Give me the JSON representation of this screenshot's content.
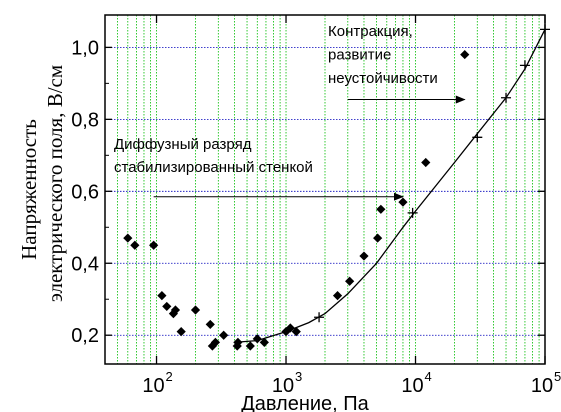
{
  "chart_data": {
    "type": "scatter",
    "title": "",
    "xlabel": "Давление, Па",
    "ylabel_lines": [
      "Напряженность",
      "электрического поля, В/см"
    ],
    "xscale": "log",
    "xlim": [
      40,
      100000
    ],
    "ylim": [
      0.12,
      1.09
    ],
    "grid": true,
    "grid_colors": {
      "x": "#00bb00",
      "y": "#0000bb"
    },
    "x_ticks": [
      {
        "base": "10",
        "exp": "2"
      },
      {
        "base": "10",
        "exp": "3"
      },
      {
        "base": "10",
        "exp": "4"
      },
      {
        "base": "10",
        "exp": "5"
      }
    ],
    "y_ticks": [
      "0,2",
      "0,4",
      "0,6",
      "0,8",
      "1,0"
    ],
    "y_tick_values": [
      0.2,
      0.4,
      0.6,
      0.8,
      1.0
    ],
    "series": [
      {
        "marker": "diamond",
        "points": [
          [
            60,
            0.47
          ],
          [
            68,
            0.45
          ],
          [
            95,
            0.45
          ],
          [
            110,
            0.31
          ],
          [
            120,
            0.28
          ],
          [
            135,
            0.26
          ],
          [
            140,
            0.27
          ],
          [
            155,
            0.21
          ],
          [
            200,
            0.27
          ],
          [
            260,
            0.23
          ],
          [
            270,
            0.17
          ],
          [
            285,
            0.18
          ],
          [
            330,
            0.2
          ],
          [
            420,
            0.17
          ],
          [
            425,
            0.18
          ],
          [
            530,
            0.17
          ],
          [
            600,
            0.19
          ],
          [
            680,
            0.18
          ],
          [
            1000,
            0.21
          ],
          [
            1080,
            0.22
          ],
          [
            1200,
            0.21
          ],
          [
            2500,
            0.31
          ],
          [
            3100,
            0.35
          ],
          [
            4000,
            0.42
          ],
          [
            5100,
            0.47
          ],
          [
            5400,
            0.55
          ],
          [
            8000,
            0.57
          ],
          [
            12000,
            0.68
          ],
          [
            24000,
            0.98
          ]
        ]
      },
      {
        "marker": "plus",
        "points": [
          [
            1800,
            0.25
          ],
          [
            9500,
            0.54
          ],
          [
            30000,
            0.75
          ],
          [
            50000,
            0.86
          ],
          [
            70000,
            0.95
          ],
          [
            100000,
            1.05
          ]
        ]
      },
      {
        "marker": "line",
        "points": [
          [
            400,
            0.18
          ],
          [
            600,
            0.185
          ],
          [
            1000,
            0.21
          ],
          [
            1500,
            0.235
          ],
          [
            2000,
            0.26
          ],
          [
            3000,
            0.315
          ],
          [
            5000,
            0.4
          ],
          [
            8000,
            0.5
          ],
          [
            10000,
            0.545
          ],
          [
            20000,
            0.68
          ],
          [
            30000,
            0.76
          ],
          [
            50000,
            0.86
          ],
          [
            70000,
            0.94
          ],
          [
            100000,
            1.05
          ]
        ]
      }
    ],
    "annotations": [
      {
        "lines": [
          "Контракция,",
          "развитие",
          "неустойчивости"
        ],
        "arrow": {
          "from": [
            3000,
            0.855
          ],
          "to": [
            24000,
            0.855
          ]
        }
      },
      {
        "lines": [
          "Диффузный разряд",
          "стабилизированный стенкой"
        ],
        "arrow": {
          "from": [
            95,
            0.585
          ],
          "to": [
            8000,
            0.585
          ]
        }
      }
    ],
    "colors": {
      "marker": "#000000",
      "line": "#000000",
      "axis": "#000000"
    }
  }
}
